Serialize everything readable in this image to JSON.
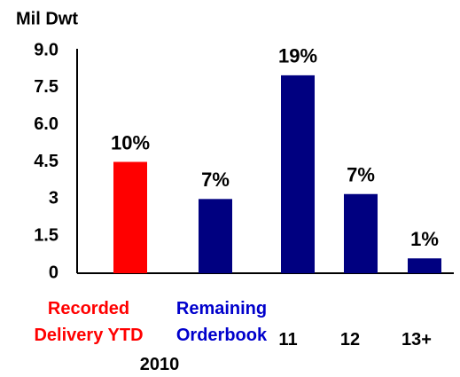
{
  "chart_data": {
    "type": "bar",
    "title": "Mil Dwt",
    "categories": [
      "Recorded Delivery YTD",
      "Remaining Orderbook",
      "11",
      "12",
      "13+"
    ],
    "group_label": "2010",
    "values": [
      4.5,
      3.0,
      8.0,
      3.2,
      0.6
    ],
    "bar_labels": [
      "10%",
      "7%",
      "19%",
      "7%",
      "1%"
    ],
    "colors": [
      "#ff0000",
      "#000080",
      "#000080",
      "#000080",
      "#000080"
    ],
    "label_colors": [
      "#ff0000",
      "#0000cc",
      "#000000",
      "#000000",
      "#000000"
    ],
    "ylim": [
      0,
      9
    ],
    "yticks": [
      0,
      1.5,
      3,
      {
        "value": 4.5,
        "label": "4.5"
      },
      {
        "value": 3.0,
        "label": "3.0"
      },
      1.5,
      {
        "value": 6,
        "label": "6.0"
      },
      7.5,
      {
        "value": 9,
        "label": "9.0"
      }
    ],
    "grid": false
  }
}
